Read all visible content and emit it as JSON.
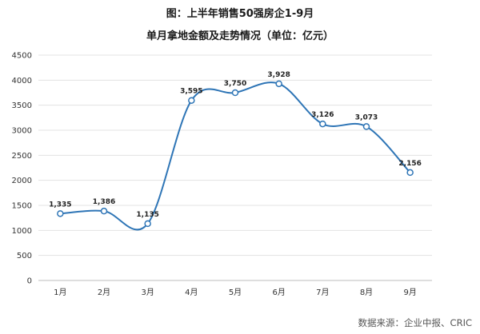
{
  "chart_data": {
    "type": "line",
    "title": "图：上半年销售50强房企1-9月",
    "subtitle": "单月拿地金额及走势情况（单位：亿元）",
    "categories": [
      "1月",
      "2月",
      "3月",
      "4月",
      "5月",
      "6月",
      "7月",
      "8月",
      "9月"
    ],
    "values": [
      1335,
      1386,
      1135,
      3595,
      3750,
      3928,
      3126,
      3073,
      2156
    ],
    "value_labels": [
      "1,335",
      "1,386",
      "1,135",
      "3,595",
      "3,750",
      "3,928",
      "3,126",
      "3,073",
      "2,156"
    ],
    "ylim": [
      0,
      4500
    ],
    "yticks": [
      0,
      500,
      1000,
      1500,
      2000,
      2500,
      3000,
      3500,
      4000,
      4500
    ],
    "grid": true,
    "line_color": "#2e75b6",
    "source": "数据来源：企业中报、CRIC"
  }
}
